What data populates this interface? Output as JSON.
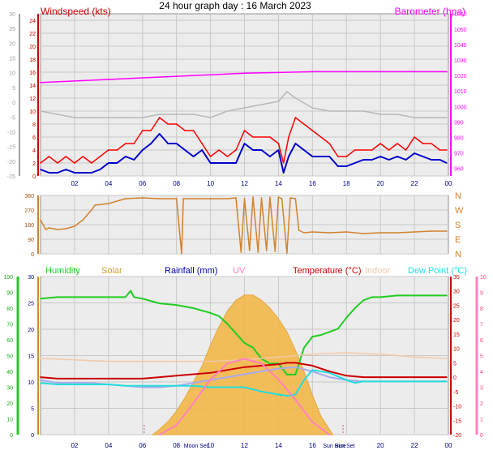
{
  "title": "24 hour graph day : 16 March 2023",
  "colors": {
    "wind_avg": "#0000cc",
    "wind_gust": "#ff0000",
    "baro": "#ff00ff",
    "wind_dir": "#d2822d",
    "humidity": "#22cc22",
    "solar": "#f3b94a",
    "rain": "#0000cc",
    "uv": "#ff80c0",
    "temperature": "#cc0000",
    "indoor": "#f2c8a8",
    "dewpoint": "#22dddd",
    "apparent": "#aaaaee",
    "grid": "#c8c8c8",
    "plot_bg": "#ececec"
  },
  "chart_data": [
    {
      "type": "line",
      "name": "wind-baro",
      "legend_left": "Windspeed (kts)",
      "legend_right": "Barometer (hpa)",
      "x_tick_labels": [
        "02",
        "04",
        "06",
        "08",
        "10",
        "12",
        "14",
        "16",
        "18",
        "20",
        "22",
        "00"
      ],
      "y_left_ticks": [
        0,
        2,
        4,
        6,
        8,
        10,
        12,
        14,
        16,
        18,
        20,
        22,
        24
      ],
      "y_far_left_ticks": [
        -25,
        -20,
        -15,
        -10,
        -5,
        0,
        5,
        10,
        15,
        20,
        25,
        30
      ],
      "y_right_ticks": [
        960,
        970,
        980,
        990,
        1000,
        1010,
        1020,
        1030,
        1040,
        1050,
        1060
      ],
      "ylim_left": [
        0,
        25
      ],
      "ylim_right": [
        955,
        1060
      ],
      "xlim": [
        0,
        24
      ],
      "series": [
        {
          "key": "baro",
          "axis": "right",
          "x": [
            0,
            2,
            4,
            6,
            8,
            10,
            11,
            12,
            14,
            16,
            18,
            20,
            22,
            23.9
          ],
          "y": [
            1015.5,
            1016.5,
            1017.5,
            1018.5,
            1019.5,
            1020.5,
            1021,
            1021.5,
            1022,
            1022.5,
            1022.5,
            1022.5,
            1022.5,
            1022.5
          ]
        },
        {
          "key": "grey",
          "axis": "left",
          "x": [
            0,
            1,
            2,
            3,
            4,
            5,
            6,
            7,
            8,
            9,
            10,
            11,
            12,
            13,
            14,
            14.5,
            15,
            16,
            17,
            18,
            19,
            20,
            21,
            22,
            23,
            23.9
          ],
          "y": [
            10,
            9.5,
            9,
            9,
            9,
            9,
            9,
            9.5,
            9.5,
            9.5,
            9,
            10,
            10.5,
            11,
            11.5,
            13,
            12,
            10.5,
            10,
            10,
            10,
            9.5,
            9.5,
            9,
            9,
            9
          ]
        },
        {
          "key": "wind_avg",
          "axis": "left",
          "x": [
            0,
            0.5,
            1,
            1.5,
            2,
            2.5,
            3,
            3.5,
            4,
            4.5,
            5,
            5.5,
            6,
            6.5,
            7,
            7.5,
            8,
            8.5,
            9,
            9.5,
            10,
            10.5,
            11,
            11.5,
            12,
            12.5,
            13,
            13.5,
            14,
            14.3,
            14.6,
            15,
            15.5,
            16,
            16.5,
            17,
            17.5,
            18,
            18.5,
            19,
            19.5,
            20,
            20.5,
            21,
            21.5,
            22,
            22.5,
            23,
            23.5,
            23.9
          ],
          "y": [
            1,
            0.5,
            0.5,
            1,
            0.5,
            0.5,
            0.5,
            1,
            2,
            2,
            3,
            2.5,
            4,
            5,
            6.5,
            5,
            5,
            4,
            3,
            4,
            2,
            2,
            2,
            2,
            5,
            4,
            4,
            3,
            4,
            0.5,
            3,
            5,
            4,
            3,
            3,
            3,
            1.5,
            1.5,
            2,
            2.5,
            2.5,
            3,
            2.5,
            3,
            2.5,
            3.5,
            3,
            2.5,
            2.5,
            2
          ]
        },
        {
          "key": "wind_gust",
          "axis": "left",
          "x": [
            0,
            0.5,
            1,
            1.5,
            2,
            2.5,
            3,
            3.5,
            4,
            4.5,
            5,
            5.5,
            6,
            6.5,
            7,
            7.5,
            8,
            8.5,
            9,
            9.5,
            10,
            10.5,
            11,
            11.5,
            12,
            12.5,
            13,
            13.5,
            14,
            14.3,
            14.6,
            15,
            15.5,
            16,
            16.5,
            17,
            17.5,
            18,
            18.5,
            19,
            19.5,
            20,
            20.5,
            21,
            21.5,
            22,
            22.5,
            23,
            23.5,
            23.9
          ],
          "y": [
            2,
            3,
            2,
            3,
            2,
            3,
            2,
            3,
            4,
            4,
            5,
            5,
            7,
            7,
            9,
            8,
            8,
            7,
            7,
            5,
            3,
            4,
            3,
            4,
            7,
            6,
            6,
            6,
            5,
            2,
            6,
            9,
            8,
            7,
            6,
            5,
            3,
            3,
            4,
            4,
            4,
            5,
            4,
            5,
            4,
            6,
            5,
            5,
            4,
            4
          ]
        }
      ]
    },
    {
      "type": "line",
      "name": "wind-direction",
      "y_left_ticks": [
        0,
        90,
        180,
        270,
        360
      ],
      "y_right_labels": [
        "N",
        "E",
        "S",
        "W",
        "N"
      ],
      "ylim": [
        0,
        360
      ],
      "xlim": [
        0,
        24
      ],
      "series": [
        {
          "key": "wind_dir",
          "axis": "left",
          "x": [
            0,
            0.3,
            0.5,
            1,
            1.5,
            2,
            2.5,
            3,
            3.2,
            4,
            5,
            6,
            7,
            8,
            8.3,
            8.4,
            9,
            10,
            11,
            11.5,
            11.8,
            12,
            12.3,
            12.5,
            12.8,
            13,
            13.3,
            13.5,
            13.8,
            14,
            14.2,
            14.5,
            14.7,
            15,
            15.2,
            15.5,
            16,
            17,
            18,
            19,
            20,
            21,
            22,
            23,
            23.9
          ],
          "y": [
            210,
            150,
            160,
            150,
            155,
            170,
            210,
            270,
            300,
            310,
            340,
            345,
            340,
            340,
            0,
            340,
            340,
            340,
            340,
            345,
            10,
            340,
            20,
            350,
            10,
            345,
            20,
            350,
            15,
            350,
            340,
            5,
            345,
            340,
            145,
            130,
            135,
            130,
            135,
            125,
            130,
            130,
            135,
            140,
            140
          ]
        }
      ]
    },
    {
      "type": "line",
      "name": "humidity-temperature",
      "legend": [
        "Humidity",
        "Solar",
        "Rainfall (mm)",
        "UV",
        "Temperature (°C)",
        "Indoor",
        "Dew Point (°C)"
      ],
      "x_tick_labels": [
        "02",
        "04",
        "06",
        "08",
        "Moon Set",
        "10",
        "12",
        "14",
        "16",
        "Sun Rise",
        "Sun Set",
        "20",
        "22",
        "00"
      ],
      "y_humidity_ticks": [
        0,
        10,
        20,
        30,
        40,
        50,
        60,
        70,
        80,
        90,
        100
      ],
      "y_solar_ticks": [
        0,
        5,
        10,
        15,
        20,
        25,
        30
      ],
      "y_temp_ticks": [
        -20,
        -15,
        -10,
        -5,
        0,
        5,
        10,
        15,
        20,
        25,
        30,
        35
      ],
      "y_uv_ticks": [
        0,
        1,
        2,
        3,
        4,
        5,
        6,
        7,
        8,
        9,
        10
      ],
      "ylim_temp": [
        -20,
        35
      ],
      "xlim": [
        0,
        24
      ],
      "series": [
        {
          "key": "humidity",
          "axis": "humidity",
          "x": [
            0,
            1,
            2,
            3,
            4,
            5,
            5.3,
            5.5,
            6,
            7,
            8,
            9,
            10,
            10.5,
            11,
            11.5,
            12,
            12.5,
            13,
            13.5,
            14,
            14.5,
            15,
            15.5,
            16,
            16.5,
            17,
            17.5,
            18,
            18.5,
            19,
            19.5,
            20,
            21,
            22,
            23,
            23.9
          ],
          "y": [
            86,
            87,
            87,
            87,
            87,
            87,
            91,
            87,
            86,
            83,
            82,
            80,
            77,
            75,
            70,
            64,
            58,
            55,
            48,
            45,
            45,
            38,
            38,
            55,
            62,
            63,
            65,
            67,
            74,
            80,
            85,
            87,
            87,
            88,
            88,
            88,
            88
          ]
        },
        {
          "key": "temperature",
          "axis": "temp",
          "x": [
            0,
            1,
            2,
            3,
            4,
            5,
            6,
            7,
            8,
            9,
            10,
            11,
            12,
            13,
            14,
            14.5,
            15,
            15.5,
            16,
            17,
            18,
            19,
            20,
            21,
            22,
            23,
            23.9
          ],
          "y": [
            0,
            -0.5,
            -0.5,
            -0.5,
            -0.5,
            -0.5,
            -0.5,
            0,
            0.5,
            1,
            1.5,
            2.5,
            3.5,
            4,
            4.5,
            5,
            5,
            4.5,
            4,
            2,
            0.5,
            0,
            0,
            0,
            0,
            0,
            0
          ]
        },
        {
          "key": "indoor",
          "axis": "temp",
          "x": [
            0,
            2,
            4,
            6,
            8,
            10,
            12,
            14,
            16,
            18,
            20,
            22,
            23.9
          ],
          "y": [
            6.5,
            6,
            5.5,
            5.5,
            5.5,
            5.5,
            6,
            7,
            8,
            8.5,
            8,
            7,
            6.5
          ]
        },
        {
          "key": "apparent",
          "axis": "temp",
          "x": [
            0,
            1,
            2,
            3,
            4,
            5,
            6,
            7,
            8,
            9,
            10,
            11,
            12,
            13,
            14,
            15,
            16,
            17,
            18,
            19,
            20,
            21,
            22,
            23,
            23.9
          ],
          "y": [
            -1,
            -2,
            -2,
            -2,
            -2.5,
            -3,
            -3.5,
            -3.5,
            -3,
            -2,
            -1,
            0,
            1,
            2,
            3,
            3.5,
            2,
            0,
            -1,
            -1.5,
            -1.5,
            -1.5,
            -1.5,
            -1.5,
            -1.5
          ]
        },
        {
          "key": "dewpoint",
          "axis": "temp",
          "x": [
            0,
            1,
            2,
            3,
            4,
            5,
            6,
            7,
            8,
            9,
            10,
            11,
            12,
            13,
            14,
            14.5,
            15,
            15.5,
            16,
            17,
            18,
            18.5,
            19,
            20,
            21,
            22,
            23,
            23.9
          ],
          "y": [
            -2,
            -2.5,
            -2.5,
            -2.5,
            -2.5,
            -3,
            -3,
            -3,
            -3,
            -3,
            -3.5,
            -3.5,
            -3.5,
            -5,
            -6,
            -6.5,
            -6,
            -1,
            2.5,
            1.5,
            -1,
            -2,
            -1.5,
            -1.5,
            -1.5,
            -1.5,
            -1.5,
            -1.5
          ]
        },
        {
          "key": "solar",
          "axis": "solar",
          "area": true,
          "x": [
            6.6,
            7,
            7.5,
            8,
            8.5,
            9,
            9.5,
            10,
            10.5,
            11,
            11.5,
            12,
            12.5,
            13,
            13.5,
            14,
            14.5,
            15,
            15.5,
            16,
            16.5,
            17.2
          ],
          "y": [
            0,
            1,
            2.5,
            4.5,
            7,
            10,
            13,
            17,
            20.5,
            23.5,
            25.5,
            26.5,
            26.5,
            25.5,
            24,
            22,
            19.5,
            16,
            12,
            7.5,
            3.5,
            0
          ]
        },
        {
          "key": "uv",
          "axis": "uv",
          "x": [
            7,
            8,
            9,
            10,
            11,
            12,
            13,
            14,
            15,
            16,
            17
          ],
          "y": [
            0,
            0.6,
            2,
            3.5,
            4.5,
            4.8,
            4.5,
            3.5,
            2.2,
            0.8,
            0
          ]
        }
      ]
    }
  ]
}
